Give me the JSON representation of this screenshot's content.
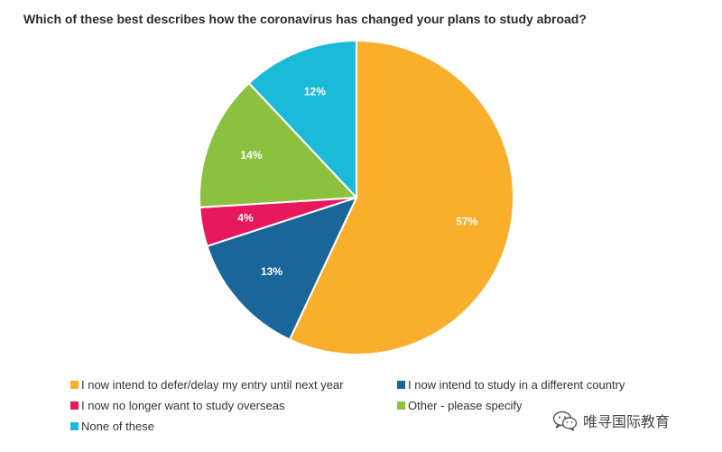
{
  "chart_data": {
    "type": "pie",
    "title": "Which of these best describes how the coronavirus has changed your plans to study abroad?",
    "slices": [
      {
        "label": "I now intend to defer/delay my entry until next year",
        "value": 57,
        "display": "57%",
        "color": "#f9ae2c"
      },
      {
        "label": "I now intend to study in a different country",
        "value": 13,
        "display": "13%",
        "color": "#1b6699"
      },
      {
        "label": "I now no longer want to study overseas",
        "value": 4,
        "display": "4%",
        "color": "#e8185f"
      },
      {
        "label": "Other - please specify",
        "value": 14,
        "display": "14%",
        "color": "#8cc140"
      },
      {
        "label": "None of these",
        "value": 12,
        "display": "12%",
        "color": "#1bbad8"
      }
    ],
    "legend_position": "bottom"
  },
  "watermark": {
    "text": "唯寻国际教育",
    "icon": "wechat-icon"
  }
}
